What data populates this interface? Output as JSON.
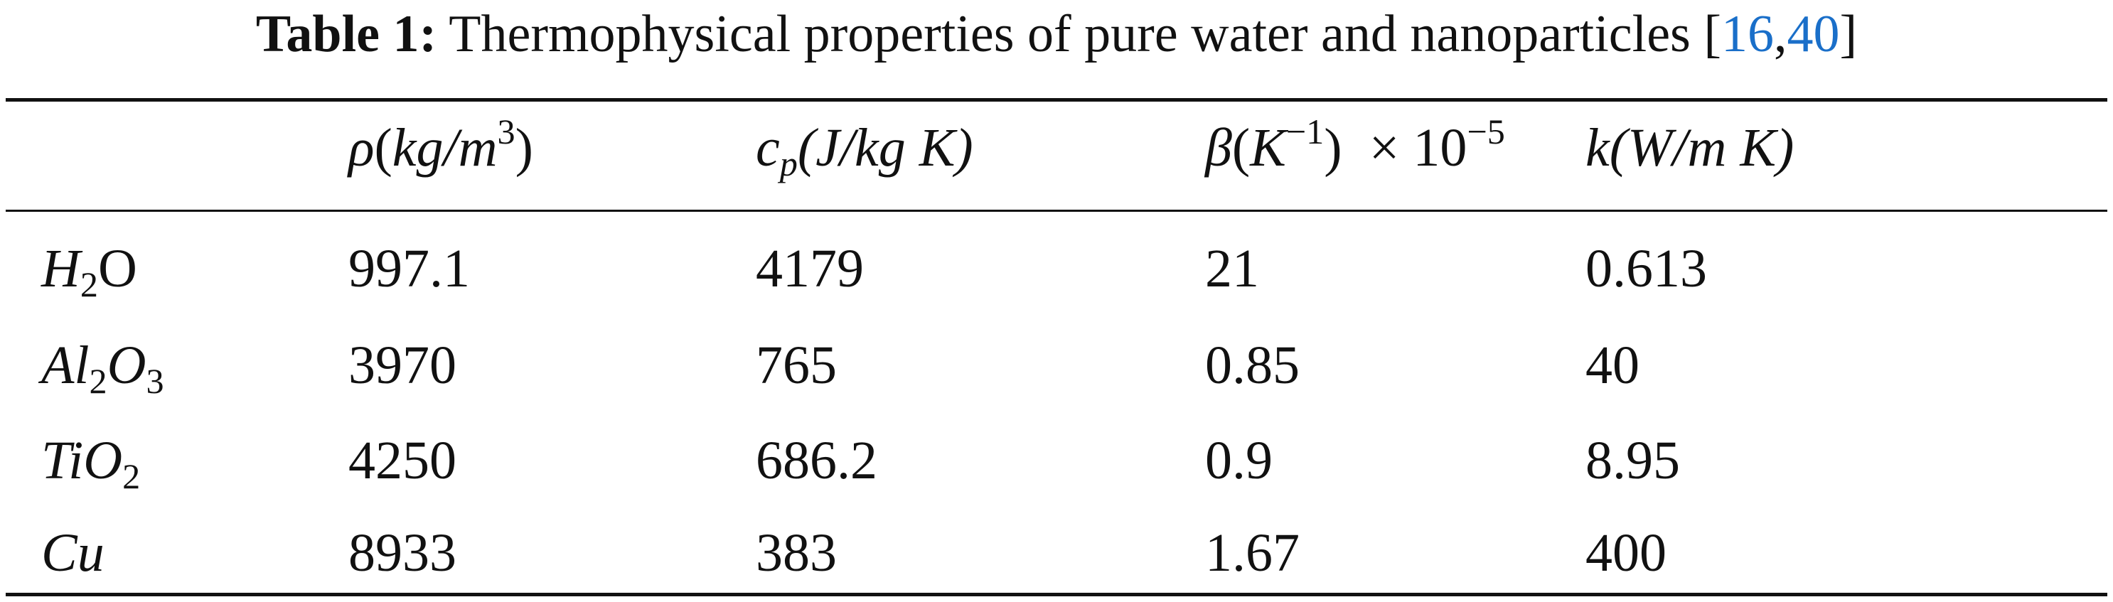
{
  "caption": {
    "label": "Table 1:",
    "text": "Thermophysical properties of pure water and nanoparticles [",
    "refs": [
      "16",
      "40"
    ],
    "ref_separator": ",",
    "close": "]"
  },
  "headers": {
    "density": {
      "symbol": "ρ",
      "open": "(",
      "unit": "kg/m",
      "power": "3",
      "close": ")"
    },
    "heat_capacity": {
      "symbol": "c",
      "subscript": "p",
      "unit": "(J/kg K)"
    },
    "expansion": {
      "symbol": "β",
      "open": "(",
      "base": "K",
      "power": "−1",
      "close": ")",
      "times": "× 10",
      "exponent": "−5"
    },
    "conductivity": {
      "symbol": "k",
      "unit": "(W/m K)"
    }
  },
  "rows": [
    {
      "substance_parts": [
        {
          "text": "H",
          "style": "italic"
        },
        {
          "text": "2",
          "style": "sub"
        },
        {
          "text": "O",
          "style": "upright"
        }
      ],
      "density": "997.1",
      "heat_capacity": "4179",
      "expansion": "21",
      "conductivity": "0.613"
    },
    {
      "substance_parts": [
        {
          "text": "Al",
          "style": "italic"
        },
        {
          "text": "2",
          "style": "sub"
        },
        {
          "text": "O",
          "style": "italic"
        },
        {
          "text": "3",
          "style": "sub"
        }
      ],
      "density": "3970",
      "heat_capacity": "765",
      "expansion": "0.85",
      "conductivity": "40"
    },
    {
      "substance_parts": [
        {
          "text": "TiO",
          "style": "italic"
        },
        {
          "text": "2",
          "style": "sub"
        }
      ],
      "density": "4250",
      "heat_capacity": "686.2",
      "expansion": "0.9",
      "conductivity": "8.95"
    },
    {
      "substance_parts": [
        {
          "text": "Cu",
          "style": "italic"
        }
      ],
      "density": "8933",
      "heat_capacity": "383",
      "expansion": "1.67",
      "conductivity": "400"
    }
  ]
}
